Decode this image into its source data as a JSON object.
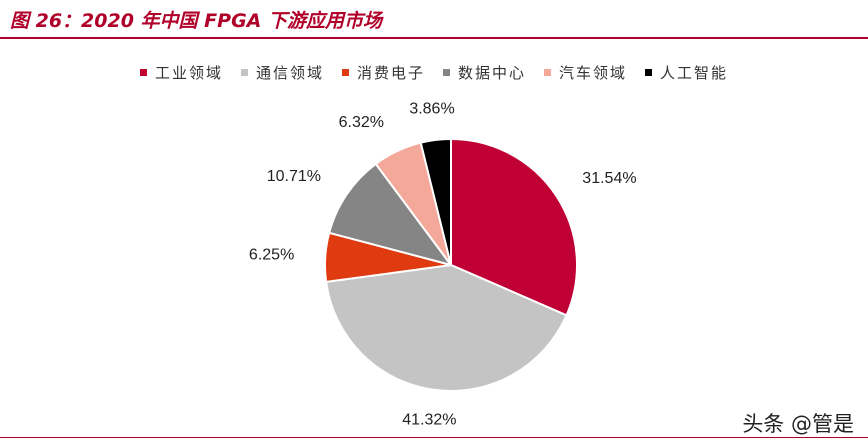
{
  "title": "图 26：2020 年中国 FPGA 下游应用市场",
  "watermark": "头条 @管是",
  "chart_data": {
    "type": "pie",
    "legend_position": "top",
    "start": "12 o'clock, clockwise",
    "series": [
      {
        "name": "工业领域",
        "value": 31.54,
        "label": "31.54%",
        "color": "#c00034"
      },
      {
        "name": "通信领域",
        "value": 41.32,
        "label": "41.32%",
        "color": "#c4c4c4"
      },
      {
        "name": "消费电子",
        "value": 6.25,
        "label": "6.25%",
        "color": "#e03a10"
      },
      {
        "name": "数据中心",
        "value": 10.71,
        "label": "10.71%",
        "color": "#858585"
      },
      {
        "name": "汽车领域",
        "value": 6.32,
        "label": "6.32%",
        "color": "#f4a899"
      },
      {
        "name": "人工智能",
        "value": 3.86,
        "label": "3.86%",
        "color": "#000000"
      }
    ]
  }
}
